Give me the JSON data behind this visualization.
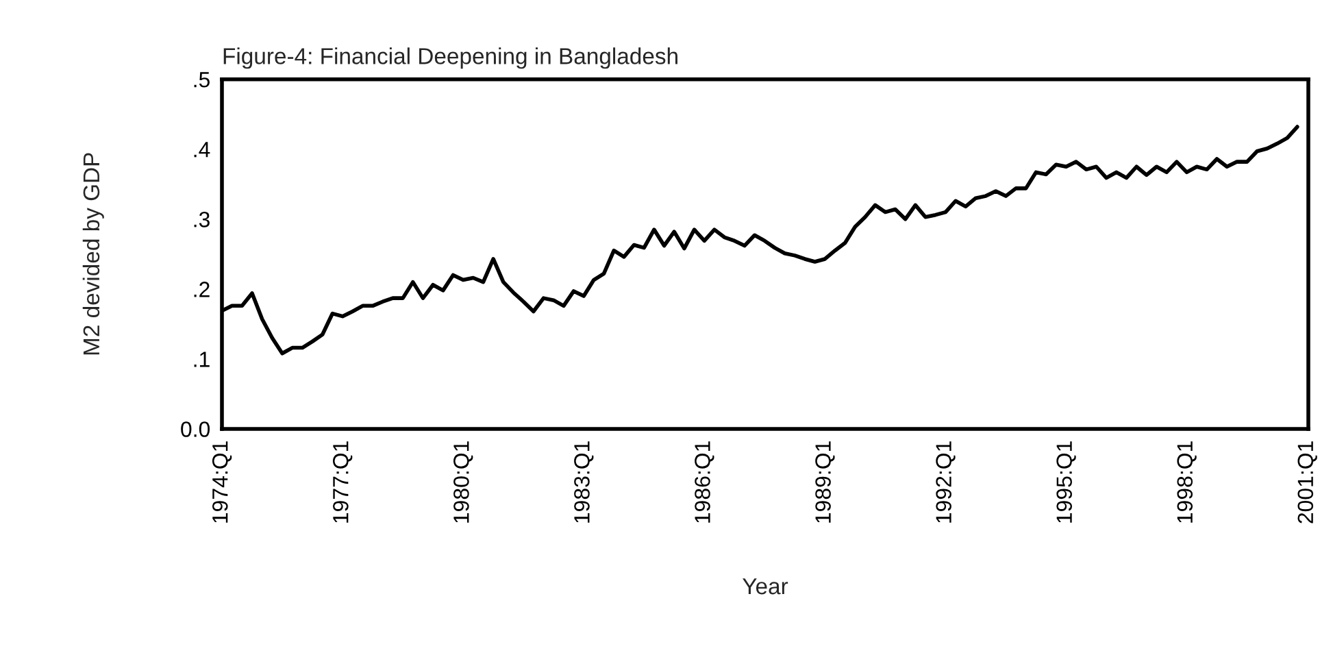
{
  "chart_data": {
    "type": "line",
    "title": "Figure-4: Financial Deepening in Bangladesh",
    "xlabel": "Year",
    "ylabel": "M2 devided by GDP",
    "ylim": [
      0,
      0.5
    ],
    "categories": [
      "1974:Q1",
      null,
      null,
      null,
      null,
      null,
      null,
      null,
      null,
      null,
      null,
      null,
      "1977:Q1",
      null,
      null,
      null,
      null,
      null,
      null,
      null,
      null,
      null,
      null,
      null,
      "1980:Q1",
      null,
      null,
      null,
      null,
      null,
      null,
      null,
      null,
      null,
      null,
      null,
      "1983:Q1",
      null,
      null,
      null,
      null,
      null,
      null,
      null,
      null,
      null,
      null,
      null,
      "1986:Q1",
      null,
      null,
      null,
      null,
      null,
      null,
      null,
      null,
      null,
      null,
      null,
      "1989:Q1",
      null,
      null,
      null,
      null,
      null,
      null,
      null,
      null,
      null,
      null,
      null,
      "1992:Q1",
      null,
      null,
      null,
      null,
      null,
      null,
      null,
      null,
      null,
      null,
      null,
      "1995:Q1",
      null,
      null,
      null,
      null,
      null,
      null,
      null,
      null,
      null,
      null,
      null,
      "1998:Q1",
      null,
      null,
      null,
      null,
      null,
      null,
      null,
      null,
      null,
      null,
      null,
      "2001:Q1"
    ],
    "yticks": [
      {
        "value": 0,
        "label": "0.0"
      },
      {
        "value": 0.1,
        "label": ".1"
      },
      {
        "value": 0.2,
        "label": ".2"
      },
      {
        "value": 0.3,
        "label": ".3"
      },
      {
        "value": 0.4,
        "label": ".4"
      },
      {
        "value": 0.5,
        "label": ".5"
      }
    ],
    "grid": false,
    "legend": false,
    "marker": "none",
    "line_style": "solid",
    "series": [
      {
        "color": "#000000",
        "values": [
          0.169,
          0.176,
          0.176,
          0.194,
          0.157,
          0.13,
          0.108,
          0.116,
          0.116,
          0.125,
          0.135,
          0.165,
          0.161,
          0.168,
          0.176,
          0.176,
          0.182,
          0.187,
          0.187,
          0.21,
          0.187,
          0.206,
          0.198,
          0.22,
          0.213,
          0.216,
          0.21,
          0.243,
          0.21,
          0.195,
          0.182,
          0.168,
          0.187,
          0.184,
          0.176,
          0.197,
          0.19,
          0.213,
          0.222,
          0.255,
          0.246,
          0.263,
          0.259,
          0.285,
          0.262,
          0.282,
          0.258,
          0.285,
          0.269,
          0.285,
          0.274,
          0.269,
          0.262,
          0.277,
          0.269,
          0.259,
          0.251,
          0.248,
          0.243,
          0.239,
          0.243,
          0.255,
          0.266,
          0.289,
          0.303,
          0.32,
          0.31,
          0.314,
          0.3,
          0.32,
          0.303,
          0.306,
          0.31,
          0.326,
          0.318,
          0.33,
          0.333,
          0.34,
          0.333,
          0.344,
          0.344,
          0.367,
          0.364,
          0.378,
          0.375,
          0.382,
          0.371,
          0.375,
          0.359,
          0.367,
          0.359,
          0.375,
          0.363,
          0.375,
          0.367,
          0.382,
          0.367,
          0.375,
          0.371,
          0.386,
          0.375,
          0.382,
          0.382,
          0.397,
          0.401,
          0.408,
          0.416,
          0.432,
          null
        ]
      }
    ]
  }
}
